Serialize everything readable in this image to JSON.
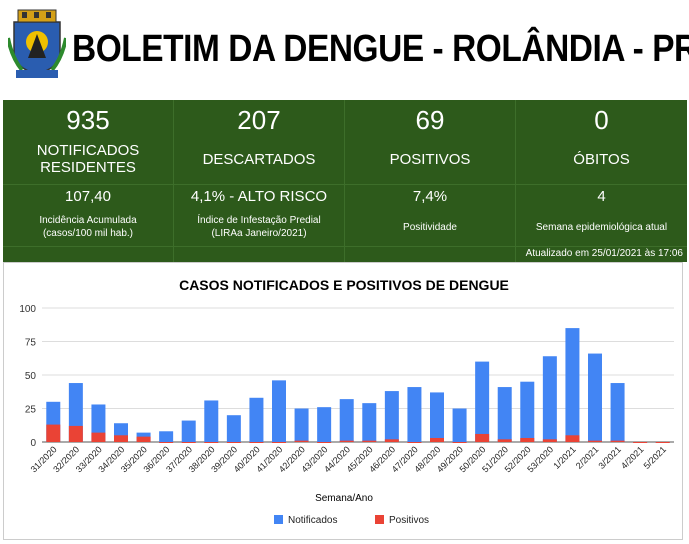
{
  "header": {
    "title": "BOLETIM DA DENGUE - ROLÂNDIA - PR"
  },
  "stats": [
    {
      "value": "935",
      "label": "NOTIFICADOS RESIDENTES"
    },
    {
      "value": "207",
      "label": "DESCARTADOS"
    },
    {
      "value": "69",
      "label": "POSITIVOS"
    },
    {
      "value": "0",
      "label": "ÓBITOS"
    }
  ],
  "indicators": [
    {
      "value": "107,40",
      "label": "Incidência Acumulada (casos/100 mil hab.)"
    },
    {
      "value": "4,1% - ALTO RISCO",
      "label": "Índice de Infestação Predial (LIRAa Janeiro/2021)"
    },
    {
      "value": "7,4%",
      "label": "Positividade"
    },
    {
      "value": "4",
      "label": "Semana epidemiológica atual"
    }
  ],
  "updated": "Atualizado em 25/01/2021 às 17:06",
  "colors": {
    "green": "#2d5a1b",
    "blue": "#4285f4",
    "red": "#ea4335"
  },
  "chart_data": {
    "type": "bar",
    "title": "CASOS NOTIFICADOS E POSITIVOS DE DENGUE",
    "xlabel": "Semana/Ano",
    "ylabel": "",
    "ylim": [
      0,
      100
    ],
    "yticks": [
      0,
      25,
      50,
      75,
      100
    ],
    "legend": "bottom",
    "categories": [
      "31/2020",
      "32/2020",
      "33/2020",
      "34/2020",
      "35/2020",
      "36/2020",
      "37/2020",
      "38/2020",
      "39/2020",
      "40/2020",
      "41/2020",
      "42/2020",
      "43/2020",
      "44/2020",
      "45/2020",
      "46/2020",
      "47/2020",
      "48/2020",
      "49/2020",
      "50/2020",
      "51/2020",
      "52/2020",
      "53/2020",
      "1/2021",
      "2/2021",
      "3/2021",
      "4/2021",
      "5/2021"
    ],
    "series": [
      {
        "name": "Notificados",
        "color": "#4285f4",
        "values": [
          30,
          44,
          28,
          14,
          7,
          8,
          16,
          31,
          20,
          33,
          46,
          25,
          26,
          32,
          29,
          38,
          41,
          37,
          25,
          60,
          41,
          45,
          64,
          85,
          66,
          44,
          0,
          0
        ]
      },
      {
        "name": "Positivos",
        "color": "#ea4335",
        "values": [
          13,
          12,
          7,
          5,
          4,
          0,
          0,
          0,
          0,
          0,
          0,
          1,
          0,
          1,
          1,
          2,
          0,
          3,
          0,
          6,
          2,
          3,
          2,
          5,
          1,
          1,
          0,
          0
        ]
      }
    ]
  }
}
